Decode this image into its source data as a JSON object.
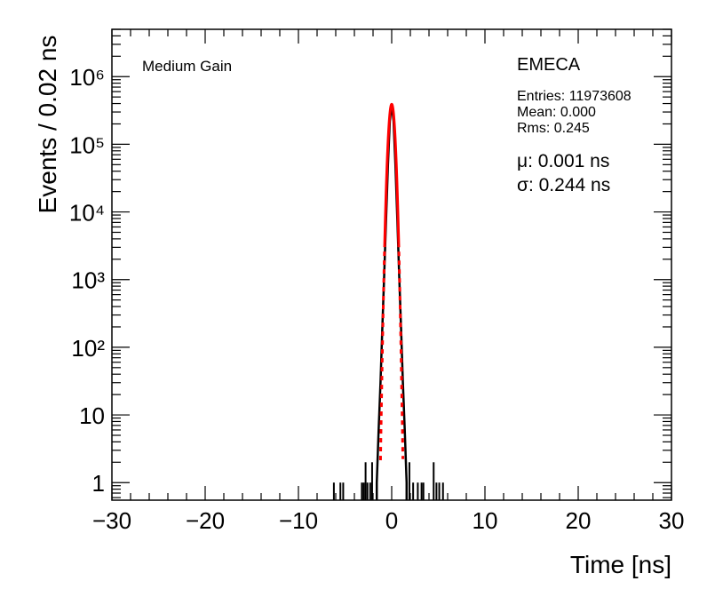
{
  "chart_data": {
    "type": "histogram",
    "xlabel": "Time [ns]",
    "ylabel": "Events / 0.02 ns",
    "xlim": [
      -30,
      30
    ],
    "ylim": [
      0.55,
      5000000
    ],
    "yscale": "log",
    "bin_width": 0.02,
    "x_ticks": [
      -30,
      -20,
      -10,
      0,
      10,
      20,
      30
    ],
    "x_tick_labels": [
      "−30",
      "−20",
      "−10",
      "0",
      "10",
      "20",
      "30"
    ],
    "y_ticks": [
      1,
      10,
      100,
      1000,
      10000,
      100000,
      1000000
    ],
    "y_tick_labels": [
      "1",
      "10",
      "10²",
      "10³",
      "10⁴",
      "10⁵",
      "10⁶"
    ],
    "annotation_region": "Medium Gain",
    "annotation_partition": "EMECA",
    "stats": {
      "entries_label": "Entries: 11973608",
      "mean_label": "Mean: 0.000",
      "rms_label": "Rms: 0.245"
    },
    "fit": {
      "mu": 0.001,
      "sigma": 0.244,
      "mu_label": "μ: 0.001 ns",
      "sigma_label": "σ: 0.244 ns",
      "fit_range": [
        -1.2,
        1.2
      ],
      "line_color": "#ff0000"
    },
    "peak_height": 390000,
    "core_profile": [
      {
        "x": -1.6,
        "y": 1
      },
      {
        "x": -1.4,
        "y": 6
      },
      {
        "x": -1.2,
        "y": 30
      },
      {
        "x": -1.0,
        "y": 200
      },
      {
        "x": -0.8,
        "y": 1200
      },
      {
        "x": -0.6,
        "y": 8000
      },
      {
        "x": -0.4,
        "y": 50000
      },
      {
        "x": -0.2,
        "y": 220000
      },
      {
        "x": 0.0,
        "y": 390000
      },
      {
        "x": 0.2,
        "y": 220000
      },
      {
        "x": 0.4,
        "y": 50000
      },
      {
        "x": 0.6,
        "y": 8000
      },
      {
        "x": 0.8,
        "y": 1200
      },
      {
        "x": 1.0,
        "y": 200
      },
      {
        "x": 1.2,
        "y": 30
      },
      {
        "x": 1.4,
        "y": 6
      },
      {
        "x": 1.6,
        "y": 1
      }
    ],
    "tail_bins": [
      {
        "x": -6.2,
        "y": 1
      },
      {
        "x": -5.5,
        "y": 1
      },
      {
        "x": -5.2,
        "y": 1
      },
      {
        "x": -3.2,
        "y": 1
      },
      {
        "x": -3.0,
        "y": 1
      },
      {
        "x": -2.8,
        "y": 2
      },
      {
        "x": -2.6,
        "y": 1
      },
      {
        "x": -2.3,
        "y": 1
      },
      {
        "x": -2.1,
        "y": 2
      },
      {
        "x": 1.9,
        "y": 2
      },
      {
        "x": 2.3,
        "y": 1
      },
      {
        "x": 2.8,
        "y": 1
      },
      {
        "x": 3.2,
        "y": 1
      },
      {
        "x": 3.4,
        "y": 1
      },
      {
        "x": 4.5,
        "y": 2
      },
      {
        "x": 4.8,
        "y": 1
      },
      {
        "x": 5.1,
        "y": 1
      },
      {
        "x": 5.5,
        "y": 1
      }
    ],
    "histogram_color": "#000000"
  }
}
